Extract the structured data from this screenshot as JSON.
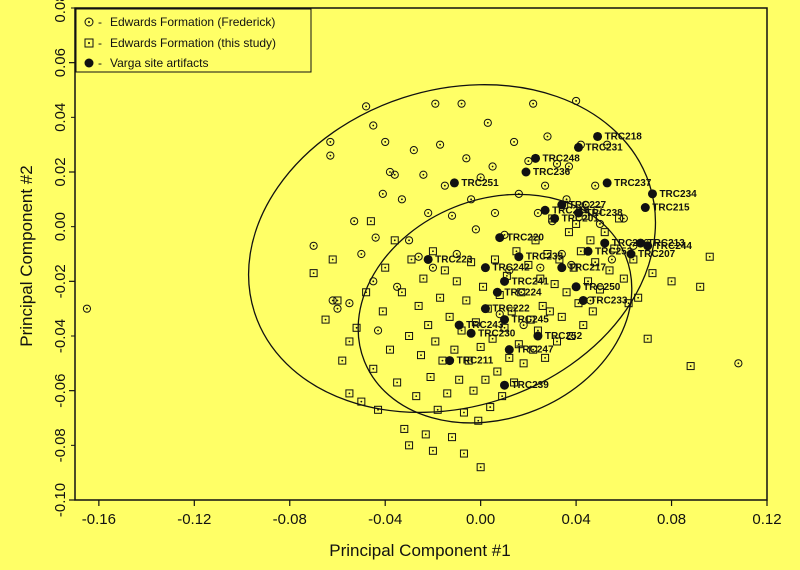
{
  "chart_data": {
    "type": "scatter",
    "xlabel": "Principal Component #1",
    "ylabel": "Principal Component #2",
    "xlim": [
      -0.17,
      0.12
    ],
    "ylim": [
      -0.1,
      0.08
    ],
    "xticks": [
      -0.16,
      -0.12,
      -0.08,
      -0.04,
      0.0,
      0.04,
      0.08,
      0.12
    ],
    "xtick_labels": [
      "-0.16",
      "-0.12",
      "-0.08",
      "-0.04",
      "0.00",
      "0.04",
      "0.08",
      "0.12"
    ],
    "yticks": [
      -0.1,
      -0.06,
      -0.02,
      0.02,
      0.06
    ],
    "ytick_labels": [
      "-0.10",
      "-0.06",
      "-0.02",
      "0.02",
      "0.06"
    ],
    "minor_yticks": [
      0.08,
      0.04,
      0.0,
      -0.04,
      -0.08
    ],
    "minor_ytick_labels": [
      "0.08",
      "0.04",
      "0.00",
      "-0.04",
      "-0.08"
    ],
    "grid": false,
    "legend_position": "top-left",
    "colors": {
      "background": "#ffff66",
      "ink": "#111111"
    },
    "series": [
      {
        "name": "Edwards Formation (Frederick)",
        "marker": "circle-dot",
        "points": [
          [
            -0.165,
            -0.03
          ],
          [
            -0.07,
            -0.007
          ],
          [
            -0.063,
            0.031
          ],
          [
            -0.063,
            0.026
          ],
          [
            -0.062,
            -0.027
          ],
          [
            -0.06,
            -0.03
          ],
          [
            -0.055,
            -0.028
          ],
          [
            -0.053,
            0.002
          ],
          [
            -0.05,
            -0.01
          ],
          [
            -0.048,
            0.044
          ],
          [
            -0.045,
            0.037
          ],
          [
            -0.045,
            -0.02
          ],
          [
            -0.044,
            -0.004
          ],
          [
            -0.043,
            -0.038
          ],
          [
            -0.041,
            0.012
          ],
          [
            -0.04,
            0.031
          ],
          [
            -0.038,
            0.02
          ],
          [
            -0.036,
            0.019
          ],
          [
            -0.035,
            -0.022
          ],
          [
            -0.033,
            0.01
          ],
          [
            -0.03,
            -0.005
          ],
          [
            -0.028,
            0.028
          ],
          [
            -0.026,
            -0.011
          ],
          [
            -0.024,
            0.019
          ],
          [
            -0.022,
            0.005
          ],
          [
            -0.02,
            -0.015
          ],
          [
            -0.019,
            0.045
          ],
          [
            -0.017,
            0.03
          ],
          [
            -0.015,
            0.015
          ],
          [
            -0.012,
            0.004
          ],
          [
            -0.01,
            -0.01
          ],
          [
            -0.008,
            0.045
          ],
          [
            -0.006,
            0.025
          ],
          [
            -0.004,
            0.01
          ],
          [
            -0.002,
            -0.001
          ],
          [
            0.0,
            0.018
          ],
          [
            0.003,
            0.038
          ],
          [
            0.005,
            0.022
          ],
          [
            0.006,
            0.005
          ],
          [
            0.008,
            -0.032
          ],
          [
            0.01,
            -0.003
          ],
          [
            0.012,
            -0.016
          ],
          [
            0.014,
            0.031
          ],
          [
            0.016,
            0.012
          ],
          [
            0.018,
            -0.036
          ],
          [
            0.02,
            0.024
          ],
          [
            0.022,
            0.045
          ],
          [
            0.024,
            0.005
          ],
          [
            0.025,
            -0.015
          ],
          [
            0.027,
            0.015
          ],
          [
            0.028,
            0.033
          ],
          [
            0.03,
            0.002
          ],
          [
            0.032,
            0.023
          ],
          [
            0.034,
            -0.01
          ],
          [
            0.036,
            0.01
          ],
          [
            0.037,
            0.022
          ],
          [
            0.038,
            -0.014
          ],
          [
            0.04,
            0.046
          ],
          [
            0.042,
            0.03
          ],
          [
            0.044,
            0.008
          ],
          [
            0.046,
            -0.027
          ],
          [
            0.048,
            0.015
          ],
          [
            0.05,
            0.001
          ],
          [
            0.053,
            0.03
          ],
          [
            0.055,
            -0.012
          ],
          [
            0.06,
            0.003
          ],
          [
            0.064,
            -0.007
          ],
          [
            0.108,
            -0.05
          ]
        ]
      },
      {
        "name": "Edwards Formation (this study)",
        "marker": "square-dot",
        "points": [
          [
            -0.07,
            -0.017
          ],
          [
            -0.065,
            -0.034
          ],
          [
            -0.062,
            -0.012
          ],
          [
            -0.06,
            -0.027
          ],
          [
            -0.058,
            -0.049
          ],
          [
            -0.055,
            -0.042
          ],
          [
            -0.055,
            -0.061
          ],
          [
            -0.052,
            -0.037
          ],
          [
            -0.05,
            -0.064
          ],
          [
            -0.048,
            -0.024
          ],
          [
            -0.046,
            0.002
          ],
          [
            -0.045,
            -0.052
          ],
          [
            -0.043,
            -0.067
          ],
          [
            -0.041,
            -0.031
          ],
          [
            -0.04,
            -0.015
          ],
          [
            -0.038,
            -0.045
          ],
          [
            -0.036,
            -0.005
          ],
          [
            -0.035,
            -0.057
          ],
          [
            -0.033,
            -0.024
          ],
          [
            -0.032,
            -0.074
          ],
          [
            -0.03,
            -0.04
          ],
          [
            -0.029,
            -0.012
          ],
          [
            -0.027,
            -0.062
          ],
          [
            -0.026,
            -0.029
          ],
          [
            -0.025,
            -0.047
          ],
          [
            -0.024,
            -0.019
          ],
          [
            -0.023,
            -0.076
          ],
          [
            -0.022,
            -0.036
          ],
          [
            -0.021,
            -0.055
          ],
          [
            -0.02,
            -0.009
          ],
          [
            -0.019,
            -0.042
          ],
          [
            -0.018,
            -0.067
          ],
          [
            -0.017,
            -0.026
          ],
          [
            -0.016,
            -0.049
          ],
          [
            -0.015,
            -0.016
          ],
          [
            -0.014,
            -0.061
          ],
          [
            -0.013,
            -0.033
          ],
          [
            -0.012,
            -0.077
          ],
          [
            -0.011,
            -0.045
          ],
          [
            -0.01,
            -0.02
          ],
          [
            -0.009,
            -0.056
          ],
          [
            -0.008,
            -0.038
          ],
          [
            -0.007,
            -0.068
          ],
          [
            -0.006,
            -0.027
          ],
          [
            -0.005,
            -0.049
          ],
          [
            -0.004,
            -0.013
          ],
          [
            -0.003,
            -0.06
          ],
          [
            -0.002,
            -0.035
          ],
          [
            -0.001,
            -0.071
          ],
          [
            0.0,
            -0.044
          ],
          [
            0.001,
            -0.022
          ],
          [
            0.002,
            -0.056
          ],
          [
            0.003,
            -0.03
          ],
          [
            0.004,
            -0.066
          ],
          [
            0.005,
            -0.041
          ],
          [
            0.006,
            -0.012
          ],
          [
            0.007,
            -0.053
          ],
          [
            0.008,
            -0.025
          ],
          [
            0.009,
            -0.062
          ],
          [
            0.01,
            -0.037
          ],
          [
            0.011,
            -0.018
          ],
          [
            0.012,
            -0.048
          ],
          [
            0.013,
            -0.031
          ],
          [
            0.014,
            -0.057
          ],
          [
            0.015,
            -0.009
          ],
          [
            0.016,
            -0.043
          ],
          [
            0.017,
            -0.024
          ],
          [
            0.018,
            -0.05
          ],
          [
            0.02,
            -0.014
          ],
          [
            0.021,
            -0.034
          ],
          [
            0.022,
            -0.045
          ],
          [
            0.023,
            -0.005
          ],
          [
            0.024,
            -0.038
          ],
          [
            0.025,
            -0.019
          ],
          [
            0.026,
            -0.029
          ],
          [
            0.027,
            -0.048
          ],
          [
            0.028,
            -0.01
          ],
          [
            0.029,
            -0.031
          ],
          [
            0.03,
            0.003
          ],
          [
            0.031,
            -0.021
          ],
          [
            0.032,
            -0.042
          ],
          [
            0.033,
            -0.012
          ],
          [
            0.034,
            -0.033
          ],
          [
            0.035,
            0.008
          ],
          [
            0.036,
            -0.024
          ],
          [
            0.037,
            -0.002
          ],
          [
            0.038,
            -0.04
          ],
          [
            0.039,
            -0.015
          ],
          [
            0.04,
            0.001
          ],
          [
            0.041,
            -0.028
          ],
          [
            0.042,
            -0.009
          ],
          [
            0.043,
            -0.036
          ],
          [
            0.044,
            0.004
          ],
          [
            0.045,
            -0.02
          ],
          [
            0.046,
            -0.005
          ],
          [
            0.047,
            -0.031
          ],
          [
            0.048,
            -0.013
          ],
          [
            0.049,
            0.006
          ],
          [
            0.05,
            -0.023
          ],
          [
            0.052,
            -0.002
          ],
          [
            0.054,
            -0.016
          ],
          [
            0.056,
            -0.008
          ],
          [
            0.058,
            0.003
          ],
          [
            0.06,
            -0.019
          ],
          [
            0.062,
            -0.028
          ],
          [
            0.064,
            -0.012
          ],
          [
            0.066,
            -0.026
          ],
          [
            0.07,
            -0.041
          ],
          [
            0.072,
            -0.017
          ],
          [
            0.08,
            -0.02
          ],
          [
            0.088,
            -0.051
          ],
          [
            0.092,
            -0.022
          ],
          [
            0.096,
            -0.011
          ],
          [
            -0.007,
            -0.083
          ],
          [
            -0.02,
            -0.082
          ],
          [
            -0.03,
            -0.08
          ],
          [
            0.0,
            -0.088
          ]
        ]
      },
      {
        "name": "Varga site artifacts",
        "marker": "filled-circle",
        "points": [
          {
            "x": 0.049,
            "y": 0.033,
            "label": "TRC218"
          },
          {
            "x": 0.041,
            "y": 0.029,
            "label": "TRC231"
          },
          {
            "x": 0.023,
            "y": 0.025,
            "label": "TRC248"
          },
          {
            "x": 0.019,
            "y": 0.02,
            "label": "TRC236"
          },
          {
            "x": 0.053,
            "y": 0.016,
            "label": "TRC237"
          },
          {
            "x": -0.011,
            "y": 0.016,
            "label": "TRC251"
          },
          {
            "x": 0.072,
            "y": 0.012,
            "label": "TRC234"
          },
          {
            "x": 0.069,
            "y": 0.007,
            "label": "TRC215"
          },
          {
            "x": 0.034,
            "y": 0.008,
            "label": "TRC227"
          },
          {
            "x": 0.027,
            "y": 0.006,
            "label": "TRC219"
          },
          {
            "x": 0.041,
            "y": 0.005,
            "label": "TRC238"
          },
          {
            "x": 0.031,
            "y": 0.003,
            "label": "TRC201"
          },
          {
            "x": 0.008,
            "y": -0.004,
            "label": "TRC220"
          },
          {
            "x": 0.052,
            "y": -0.006,
            "label": "TRC256"
          },
          {
            "x": 0.067,
            "y": -0.006,
            "label": "TRC213"
          },
          {
            "x": 0.07,
            "y": -0.007,
            "label": "TRC244"
          },
          {
            "x": 0.045,
            "y": -0.009,
            "label": "TRC253"
          },
          {
            "x": 0.063,
            "y": -0.01,
            "label": "TRC207"
          },
          {
            "x": 0.016,
            "y": -0.011,
            "label": "TRC235"
          },
          {
            "x": -0.022,
            "y": -0.012,
            "label": "TRC223"
          },
          {
            "x": 0.002,
            "y": -0.015,
            "label": "TRC242"
          },
          {
            "x": 0.034,
            "y": -0.015,
            "label": "TRC217"
          },
          {
            "x": 0.01,
            "y": -0.02,
            "label": "TRC241"
          },
          {
            "x": 0.04,
            "y": -0.022,
            "label": "TRC250"
          },
          {
            "x": 0.007,
            "y": -0.024,
            "label": "TRC224"
          },
          {
            "x": 0.043,
            "y": -0.027,
            "label": "TRC233"
          },
          {
            "x": 0.002,
            "y": -0.03,
            "label": "TRC222"
          },
          {
            "x": 0.01,
            "y": -0.034,
            "label": "TRC245"
          },
          {
            "x": -0.009,
            "y": -0.036,
            "label": "TRC243"
          },
          {
            "x": -0.004,
            "y": -0.039,
            "label": "TRC230"
          },
          {
            "x": 0.024,
            "y": -0.04,
            "label": "TRC252"
          },
          {
            "x": 0.012,
            "y": -0.045,
            "label": "TRC247"
          },
          {
            "x": -0.013,
            "y": -0.049,
            "label": "TRC211"
          },
          {
            "x": 0.01,
            "y": -0.058,
            "label": "TRC239"
          }
        ]
      }
    ],
    "ellipses": [
      {
        "name": "Frederick 95% ellipse",
        "cx": -0.012,
        "cy": -0.008,
        "rx": 0.087,
        "ry": 0.058,
        "angle": 18
      },
      {
        "name": "this study 95% ellipse",
        "cx": 0.006,
        "cy": -0.03,
        "rx": 0.059,
        "ry": 0.04,
        "angle": 22
      }
    ]
  }
}
